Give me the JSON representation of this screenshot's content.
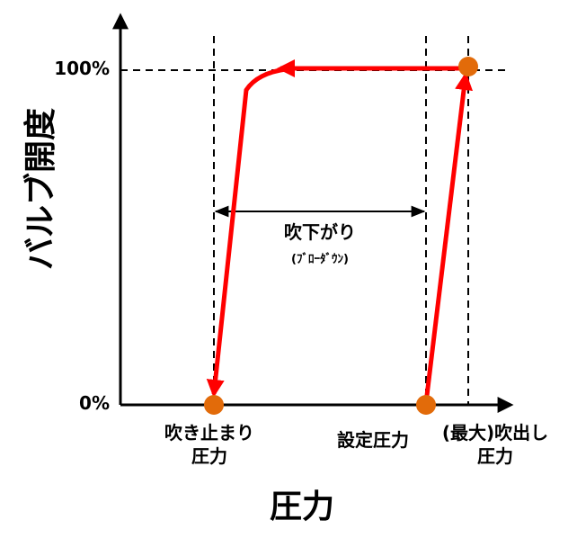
{
  "axes": {
    "x_title": "圧力",
    "y_title": "バルブ開度",
    "y_tick_top": "100%",
    "y_tick_bottom": "0%"
  },
  "blowdown": {
    "label": "吹下がり",
    "sublabel": "(ﾌﾞﾛｰﾀﾞｳﾝ)"
  },
  "points": {
    "reseat_line1": "吹き止まり",
    "reseat_line2": "圧力",
    "set": "設定圧力",
    "max_line1": "(最大)吹出し",
    "max_line2": "圧力"
  },
  "colors": {
    "curve": "#ff0000",
    "marker": "#e26b0a",
    "axis": "#000000",
    "guide": "#000000"
  }
}
